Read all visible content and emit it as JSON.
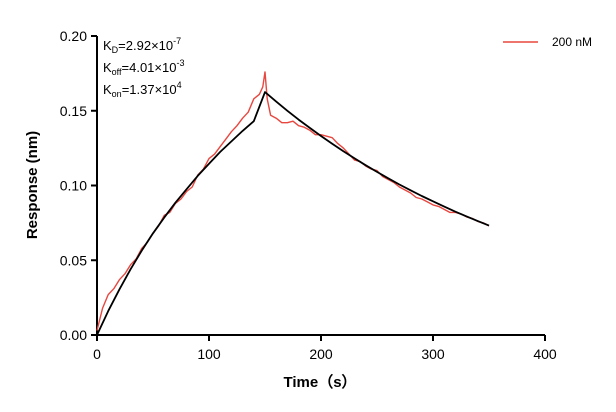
{
  "chart_data": {
    "type": "line",
    "xlabel": "Time（s）",
    "ylabel": "Response (nm)",
    "xlim": [
      0,
      400
    ],
    "ylim": [
      0,
      0.2
    ],
    "xticks": [
      "0",
      "100",
      "200",
      "300",
      "400"
    ],
    "yticks": [
      "0.00",
      "0.05",
      "0.10",
      "0.15",
      "0.20"
    ],
    "annotations": [
      {
        "main": "K",
        "sub": "D",
        "value": "=2.92×10",
        "exp": "-7"
      },
      {
        "main": "K",
        "sub": "off",
        "value": "=4.01×10",
        "exp": "-3"
      },
      {
        "main": "K",
        "sub": "on",
        "value": "=1.37×10",
        "exp": "4"
      }
    ],
    "legend_position": "top-right",
    "series": [
      {
        "name": "200 nM",
        "color": "#e8473f",
        "x": [
          0,
          5,
          10,
          15,
          20,
          25,
          30,
          35,
          40,
          45,
          50,
          55,
          60,
          65,
          70,
          75,
          80,
          85,
          90,
          95,
          100,
          105,
          110,
          115,
          120,
          125,
          130,
          135,
          140,
          145,
          148,
          150,
          152,
          155,
          160,
          165,
          170,
          175,
          180,
          185,
          190,
          195,
          200,
          205,
          210,
          215,
          220,
          225,
          230,
          235,
          240,
          245,
          250,
          255,
          260,
          265,
          270,
          275,
          280,
          285,
          290,
          295,
          300,
          305,
          310,
          315,
          320,
          325,
          330,
          335,
          340,
          345,
          350
        ],
        "y": [
          0.003,
          0.018,
          0.027,
          0.031,
          0.037,
          0.041,
          0.047,
          0.051,
          0.058,
          0.062,
          0.068,
          0.073,
          0.08,
          0.082,
          0.088,
          0.091,
          0.096,
          0.099,
          0.107,
          0.111,
          0.118,
          0.121,
          0.126,
          0.131,
          0.136,
          0.14,
          0.145,
          0.149,
          0.158,
          0.161,
          0.166,
          0.176,
          0.158,
          0.147,
          0.145,
          0.142,
          0.142,
          0.143,
          0.14,
          0.139,
          0.137,
          0.134,
          0.134,
          0.133,
          0.132,
          0.128,
          0.125,
          0.121,
          0.117,
          0.116,
          0.113,
          0.111,
          0.11,
          0.106,
          0.104,
          0.102,
          0.099,
          0.097,
          0.095,
          0.092,
          0.091,
          0.089,
          0.087,
          0.086,
          0.084,
          0.082,
          0.082,
          0.081,
          0.079,
          0.078,
          0.076,
          0.075,
          0.073
        ]
      },
      {
        "name": "",
        "color": "#000000",
        "x": [
          0,
          10,
          20,
          30,
          40,
          50,
          60,
          70,
          80,
          90,
          100,
          110,
          120,
          130,
          140,
          150,
          160,
          170,
          180,
          190,
          200,
          210,
          220,
          230,
          240,
          250,
          260,
          270,
          280,
          290,
          300,
          310,
          320,
          330,
          340,
          350
        ],
        "y": [
          0,
          0.016,
          0.0305,
          0.044,
          0.0565,
          0.068,
          0.0785,
          0.0885,
          0.0975,
          0.1065,
          0.1145,
          0.1225,
          0.1295,
          0.1365,
          0.143,
          0.1625,
          0.1561,
          0.15,
          0.1441,
          0.1385,
          0.1331,
          0.1279,
          0.1229,
          0.1181,
          0.1135,
          0.1091,
          0.1048,
          0.1007,
          0.0968,
          0.093,
          0.0894,
          0.0859,
          0.0825,
          0.0793,
          0.0762,
          0.0732
        ]
      }
    ]
  }
}
